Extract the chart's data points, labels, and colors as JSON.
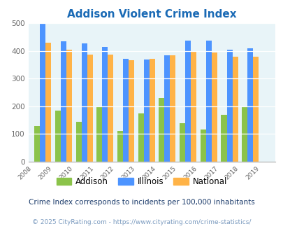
{
  "title": "Addison Violent Crime Index",
  "years": [
    2009,
    2010,
    2011,
    2012,
    2013,
    2014,
    2015,
    2016,
    2017,
    2018,
    2019
  ],
  "addison": [
    130,
    185,
    145,
    200,
    110,
    175,
    230,
    138,
    115,
    168,
    200
  ],
  "illinois": [
    498,
    435,
    428,
    415,
    370,
    368,
    383,
    438,
    437,
    405,
    408
  ],
  "national": [
    430,
    405,
    387,
    387,
    367,
    372,
    383,
    397,
    394,
    379,
    379
  ],
  "addison_color": "#8bc34a",
  "illinois_color": "#4d94ff",
  "national_color": "#ffb347",
  "bg_color": "#e8f4f8",
  "title_color": "#1a6ab5",
  "footnote1": "Crime Index corresponds to incidents per 100,000 inhabitants",
  "footnote2": "© 2025 CityRating.com - https://www.cityrating.com/crime-statistics/",
  "ylim": [
    0,
    500
  ],
  "yticks": [
    0,
    100,
    200,
    300,
    400,
    500
  ],
  "bar_width": 0.27
}
